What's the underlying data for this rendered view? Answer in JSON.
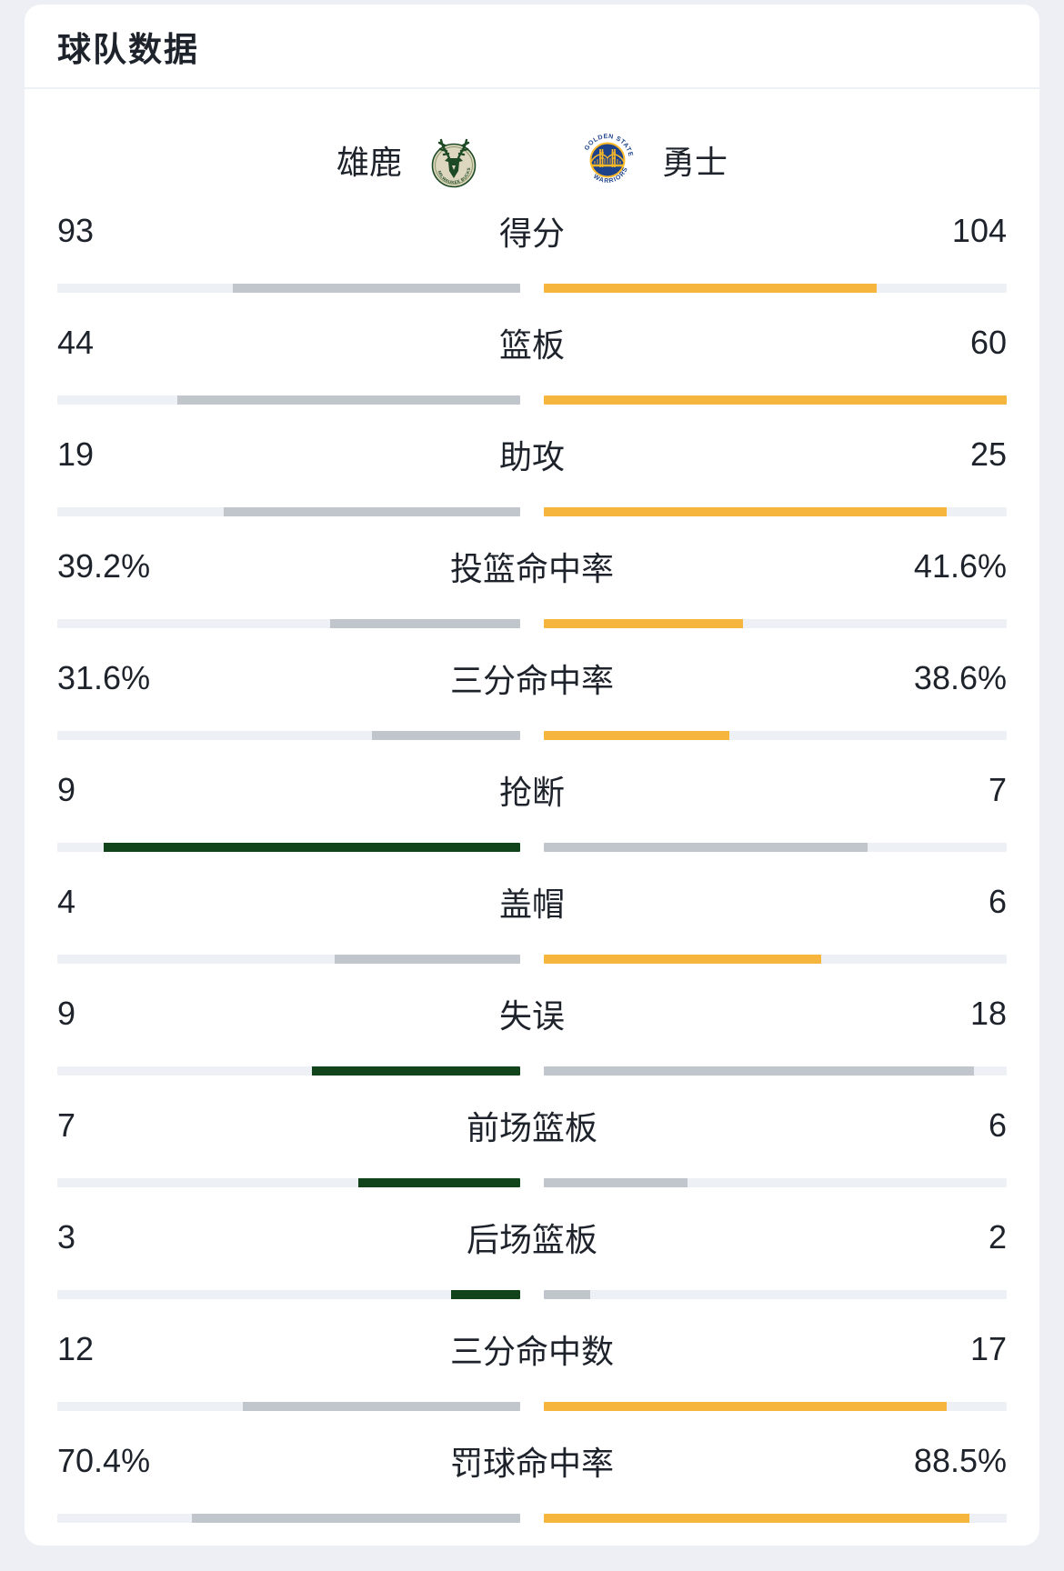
{
  "header": {
    "title": "球队数据"
  },
  "teams": {
    "home": {
      "name": "雄鹿",
      "logo_text": "MILWAUKEE BUCKS"
    },
    "away": {
      "name": "勇士",
      "logo_top_text": "GOLDEN STATE",
      "logo_bottom_text": "WARRIORS"
    }
  },
  "colors": {
    "home_win": "#11441a",
    "away_win": "#f6b63e",
    "loser": "#c1c5cc",
    "track": "#edf0f4",
    "page_bg": "#edeff4",
    "card_bg": "#ffffff",
    "text": "#1e232b",
    "bucks_green": "#1d4a24",
    "bucks_cream": "#ded7c0",
    "warriors_blue": "#1d428a",
    "warriors_gold": "#fdb927"
  },
  "stats": [
    {
      "label": "得分",
      "home_value": "93",
      "away_value": "104",
      "home_bar_pct": 62,
      "away_bar_pct": 72,
      "winner": "away"
    },
    {
      "label": "篮板",
      "home_value": "44",
      "away_value": "60",
      "home_bar_pct": 74,
      "away_bar_pct": 100,
      "winner": "away"
    },
    {
      "label": "助攻",
      "home_value": "19",
      "away_value": "25",
      "home_bar_pct": 64,
      "away_bar_pct": 87,
      "winner": "away"
    },
    {
      "label": "投篮命中率",
      "home_value": "39.2%",
      "away_value": "41.6%",
      "home_bar_pct": 41,
      "away_bar_pct": 43,
      "winner": "away"
    },
    {
      "label": "三分命中率",
      "home_value": "31.6%",
      "away_value": "38.6%",
      "home_bar_pct": 32,
      "away_bar_pct": 40,
      "winner": "away"
    },
    {
      "label": "抢断",
      "home_value": "9",
      "away_value": "7",
      "home_bar_pct": 90,
      "away_bar_pct": 70,
      "winner": "home"
    },
    {
      "label": "盖帽",
      "home_value": "4",
      "away_value": "6",
      "home_bar_pct": 40,
      "away_bar_pct": 60,
      "winner": "away"
    },
    {
      "label": "失误",
      "home_value": "9",
      "away_value": "18",
      "home_bar_pct": 45,
      "away_bar_pct": 93,
      "winner": "home"
    },
    {
      "label": "前场篮板",
      "home_value": "7",
      "away_value": "6",
      "home_bar_pct": 35,
      "away_bar_pct": 31,
      "winner": "home"
    },
    {
      "label": "后场篮板",
      "home_value": "3",
      "away_value": "2",
      "home_bar_pct": 15,
      "away_bar_pct": 10,
      "winner": "home"
    },
    {
      "label": "三分命中数",
      "home_value": "12",
      "away_value": "17",
      "home_bar_pct": 60,
      "away_bar_pct": 87,
      "winner": "away"
    },
    {
      "label": "罚球命中率",
      "home_value": "70.4%",
      "away_value": "88.5%",
      "home_bar_pct": 71,
      "away_bar_pct": 92,
      "winner": "away"
    }
  ]
}
